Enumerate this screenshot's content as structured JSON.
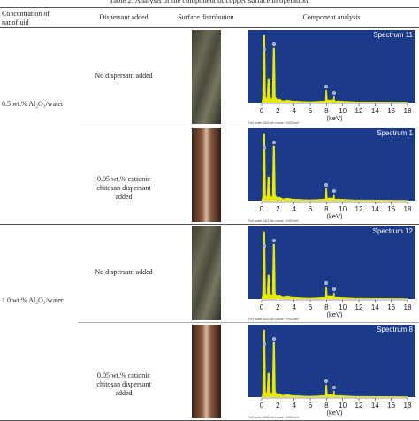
{
  "caption": "Table 2: Analysis of the component of copper surface in operation.",
  "table": {
    "headers": [
      "Concentration of nanofluid",
      "Dispersant added",
      "Surface distribution",
      "Component analysis"
    ],
    "groups": [
      {
        "concentration": "0.5 wt.% Al₂O₃/water",
        "rows": [
          {
            "dispersant": "No dispersant added",
            "spectrum": "Spectrum 11"
          },
          {
            "dispersant": "0.05 wt.% cationic chitosan dispersant added",
            "spectrum": "Spectrum 1"
          }
        ]
      },
      {
        "concentration": "1.0 wt.% Al₂O₃/water",
        "rows": [
          {
            "dispersant": "No dispersant added",
            "spectrum": "Spectrum 12"
          },
          {
            "dispersant": "0.05 wt.% cationic chitosan dispersant added",
            "spectrum": "Spectrum 8"
          }
        ]
      }
    ]
  },
  "spectrum_axis": {
    "xlim": [
      0,
      18
    ],
    "xticks": [
      0,
      2,
      4,
      6,
      8,
      10,
      12,
      14,
      16,
      18
    ],
    "xlabel": "(keV)",
    "footer": "Full scale 2402 cts cursor: 0.000 keV"
  }
}
